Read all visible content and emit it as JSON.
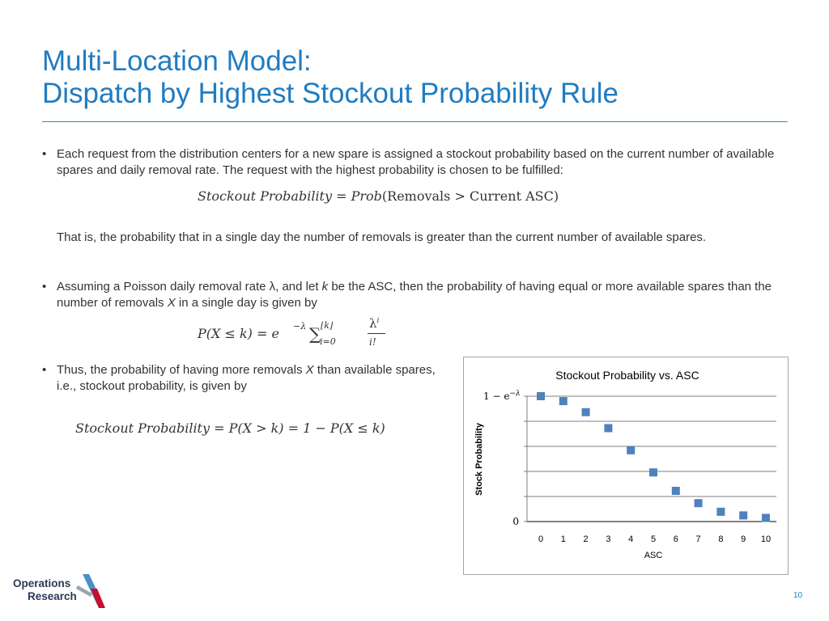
{
  "slide": {
    "title_line1": "Multi-Location Model:",
    "title_line2": "Dispatch by Highest Stockout Probability Rule",
    "page_number": "10"
  },
  "body": {
    "bullet_char": "•",
    "p1": "Each request from the distribution centers for a new spare is assigned a stockout probability based on the current number of available spares and daily removal rate. The request with the highest probability is chosen to be fulfilled:",
    "f1": {
      "lhs": "Stockout Probability",
      "eq": " = ",
      "prob": "Prob",
      "arg": "(Removals > Current ASC)"
    },
    "p2": "That is, the probability that in a single day the number of removals is greater than the current number of available spares.",
    "p3_a": "Assuming a Poisson daily removal rate ",
    "p3_lambda": "λ",
    "p3_b": ", and let ",
    "p3_k": "k",
    "p3_c": " be the ASC, then the probability of having equal or more available spares than the number of removals ",
    "p3_x": "X",
    "p3_d": " in a single day is given by",
    "f2": {
      "lhs": "P(X ≤ k) = e",
      "exp": "−λ",
      "sum": "∑",
      "upper": "⌊k⌋",
      "lower": "i=0",
      "num": "λ",
      "num_sup": "i",
      "den": "i!"
    },
    "p4_a": "Thus, the probability of having more removals ",
    "p4_x": "X",
    "p4_b": " than available spares, i.e., stockout probability, is given by",
    "f3": "Stockout Probability = P(X > k) = 1 − P(X ≤ k)"
  },
  "chart_data": {
    "type": "scatter",
    "title": "Stockout Probability vs. ASC",
    "xlabel": "ASC",
    "ylabel": "Stock Probability",
    "x": [
      0,
      1,
      2,
      3,
      4,
      5,
      6,
      7,
      8,
      9,
      10
    ],
    "y": [
      1.0,
      0.96,
      0.87,
      0.74,
      0.56,
      0.38,
      0.23,
      0.13,
      0.06,
      0.03,
      0.01
    ],
    "y_tick_top": "1 − e",
    "y_tick_top_sup": "−λ",
    "y_tick_bottom": "0",
    "ylim": [
      0,
      1
    ],
    "xlim": [
      0,
      10
    ],
    "grid": true,
    "marker_color": "#4f81bd",
    "legend": "none"
  },
  "logo": {
    "line1": "Operations",
    "line2": "Research"
  },
  "colors": {
    "title": "#1f7cc1",
    "text": "#333333",
    "marker": "#4f81bd"
  }
}
